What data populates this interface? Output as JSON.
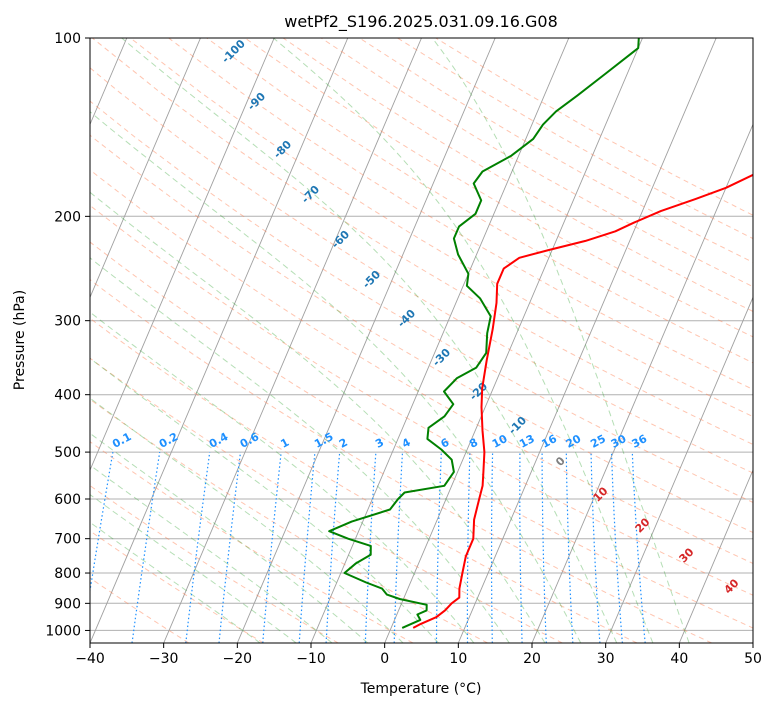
{
  "chart_data": {
    "type": "line",
    "title": "wetPf2_S196.2025.031.09.16.G08",
    "xlabel": "Temperature (°C)",
    "ylabel": "Pressure (hPa)",
    "xlim": [
      -40,
      50
    ],
    "ylim": [
      1050,
      100
    ],
    "y_scale": "log",
    "grid": true,
    "x_ticks": [
      -40,
      -30,
      -20,
      -10,
      0,
      10,
      20,
      30,
      40,
      50
    ],
    "x_tick_labels": [
      "−40",
      "−30",
      "−20",
      "−10",
      "0",
      "10",
      "20",
      "30",
      "40",
      "50"
    ],
    "y_ticks": [
      1000,
      900,
      800,
      700,
      600,
      500,
      400,
      300,
      200,
      100
    ],
    "y_tick_labels": [
      "1000",
      "900",
      "800",
      "700",
      "600",
      "500",
      "400",
      "300",
      "200",
      "100"
    ],
    "series": [
      {
        "color": "#ff0000",
        "points": [
          [
            3.0,
            990
          ],
          [
            3.8,
            975
          ],
          [
            5.5,
            950
          ],
          [
            6.3,
            925
          ],
          [
            6.8,
            900
          ],
          [
            7.5,
            880
          ],
          [
            7.0,
            850
          ],
          [
            6.5,
            800
          ],
          [
            6.0,
            750
          ],
          [
            6.0,
            700
          ],
          [
            5.0,
            650
          ],
          [
            4.5,
            600
          ],
          [
            4.2,
            570
          ],
          [
            3.5,
            540
          ],
          [
            2.5,
            500
          ],
          [
            1.0,
            460
          ],
          [
            -0.5,
            420
          ],
          [
            -1.5,
            390
          ],
          [
            -2.5,
            350
          ],
          [
            -3.5,
            310
          ],
          [
            -4.5,
            280
          ],
          [
            -5.5,
            260
          ],
          [
            -5.5,
            245
          ],
          [
            -4.0,
            235
          ],
          [
            -0.5,
            228
          ],
          [
            4.0,
            220
          ],
          [
            7.5,
            212
          ],
          [
            9.5,
            205
          ],
          [
            12.5,
            196
          ],
          [
            16.5,
            187
          ],
          [
            20.0,
            179
          ],
          [
            23.0,
            170
          ],
          [
            25.0,
            160
          ],
          [
            25.5,
            150
          ],
          [
            25.5,
            140
          ],
          [
            26.5,
            130
          ],
          [
            28.0,
            122
          ],
          [
            29.5,
            115
          ],
          [
            31.0,
            108
          ],
          [
            33.0,
            100
          ]
        ]
      },
      {
        "color": "#008000",
        "points": [
          [
            1.5,
            990
          ],
          [
            2.5,
            975
          ],
          [
            3.5,
            960
          ],
          [
            2.8,
            940
          ],
          [
            3.8,
            925
          ],
          [
            3.5,
            905
          ],
          [
            -0.5,
            885
          ],
          [
            -2.5,
            870
          ],
          [
            -3.5,
            850
          ],
          [
            -6.0,
            830
          ],
          [
            -9.5,
            800
          ],
          [
            -8.5,
            770
          ],
          [
            -7.0,
            745
          ],
          [
            -7.5,
            720
          ],
          [
            -11.0,
            700
          ],
          [
            -14.0,
            680
          ],
          [
            -11.5,
            655
          ],
          [
            -7.0,
            625
          ],
          [
            -6.5,
            600
          ],
          [
            -6.0,
            585
          ],
          [
            -1.0,
            570
          ],
          [
            -0.5,
            540
          ],
          [
            -1.5,
            515
          ],
          [
            -3.5,
            495
          ],
          [
            -6.0,
            475
          ],
          [
            -6.5,
            455
          ],
          [
            -5.0,
            435
          ],
          [
            -4.5,
            415
          ],
          [
            -6.5,
            395
          ],
          [
            -5.5,
            375
          ],
          [
            -3.5,
            360
          ],
          [
            -3.0,
            340
          ],
          [
            -4.0,
            315
          ],
          [
            -4.5,
            295
          ],
          [
            -7.0,
            275
          ],
          [
            -9.5,
            262
          ],
          [
            -10.0,
            250
          ],
          [
            -12.5,
            232
          ],
          [
            -14.0,
            218
          ],
          [
            -14.0,
            208
          ],
          [
            -12.5,
            198
          ],
          [
            -12.5,
            188
          ],
          [
            -14.5,
            176
          ],
          [
            -14.0,
            168
          ],
          [
            -11.0,
            158
          ],
          [
            -9.0,
            148
          ],
          [
            -8.5,
            140
          ],
          [
            -7.5,
            133
          ],
          [
            -5.5,
            125
          ],
          [
            -3.0,
            115
          ],
          [
            0.0,
            104
          ],
          [
            -0.5,
            100
          ]
        ]
      }
    ],
    "dry_adiabat_labels": [
      "-100",
      "-90",
      "-80",
      "-70",
      "-60",
      "-50",
      "-40",
      "-30",
      "-20",
      "-10",
      "0",
      "10",
      "20",
      "30",
      "40"
    ],
    "mixing_ratio_labels": [
      "0.1",
      "0.2",
      "0.4",
      "0.6",
      "1",
      "1.5",
      "2",
      "3",
      "4",
      "6",
      "8",
      "10",
      "13",
      "16",
      "20",
      "25",
      "30",
      "36"
    ]
  },
  "colors": {
    "axes": "#000000",
    "grid": "#b0b0b0",
    "isotherm": "#a0a0a0",
    "dry_adiabat": "#ff7f50",
    "moist_adiabat": "#2ca02c",
    "mixing_ratio": "#1e90ff",
    "adiabat_label_blue": "#1f77b4",
    "adiabat_label_red": "#d62728",
    "adiabat_label_gray": "#7f7f7f"
  }
}
